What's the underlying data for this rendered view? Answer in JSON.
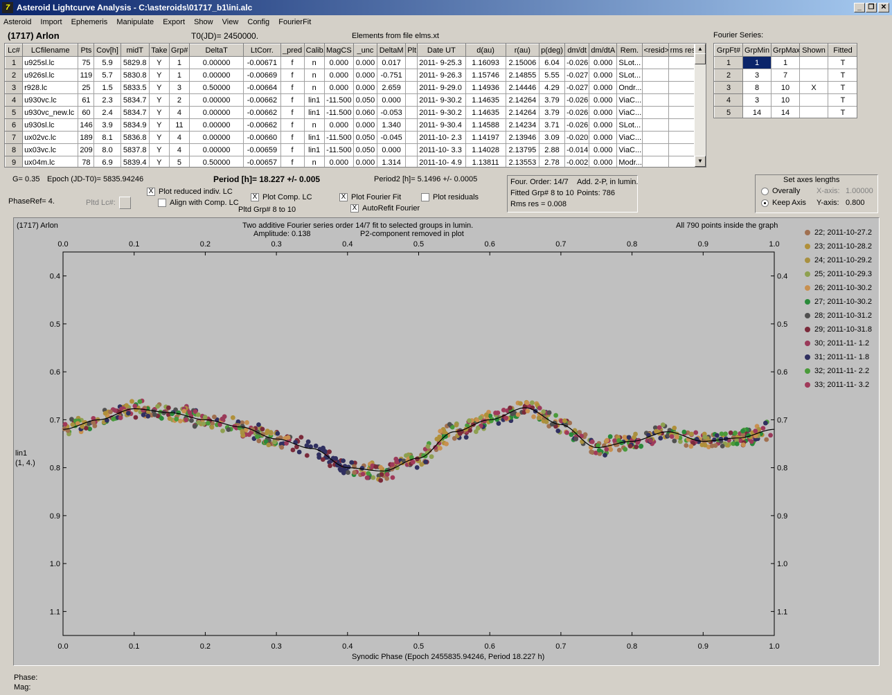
{
  "window": {
    "title": "Asteroid Lightcurve Analysis - C:\\asteroids\\01717_b1\\ini.alc",
    "icon": "app-icon"
  },
  "menu": [
    "Asteroid",
    "Import",
    "Ephemeris",
    "Manipulate",
    "Export",
    "Show",
    "View",
    "Config",
    "FourierFit"
  ],
  "asteroid_name": "(1717) Arlon",
  "t0": "T0(JD)= 2450000.",
  "elements": "Elements from file elms.xt",
  "lc_table": {
    "headers": [
      "Lc#",
      "LCfilename",
      "Pts",
      "Cov[h]",
      "midT",
      "Take",
      "Grp#",
      "DeltaT",
      "LtCorr.",
      "_pred",
      "Calib.",
      "MagCS",
      "_unc",
      "DeltaM",
      "Plt",
      "Date UT",
      "d(au)",
      "r(au)",
      "p(deg)",
      "dm/dt",
      "dm/dtA",
      "Rem.",
      "<resid>",
      "rms res"
    ],
    "rows": [
      [
        "1",
        "u925sl.lc",
        "75",
        "5.9",
        "5829.8",
        "Y",
        "1",
        "0.00000",
        "-0.00671",
        "f",
        "n",
        "0.000",
        "0.000",
        "0.017",
        "",
        "2011- 9-25.3",
        "1.16093",
        "2.15006",
        "6.04",
        "-0.026",
        "0.000",
        "SLot...",
        "",
        ""
      ],
      [
        "2",
        "u926sl.lc",
        "119",
        "5.7",
        "5830.8",
        "Y",
        "1",
        "0.00000",
        "-0.00669",
        "f",
        "n",
        "0.000",
        "0.000",
        "-0.751",
        "",
        "2011- 9-26.3",
        "1.15746",
        "2.14855",
        "5.55",
        "-0.027",
        "0.000",
        "SLot...",
        "",
        ""
      ],
      [
        "3",
        "r928.lc",
        "25",
        "1.5",
        "5833.5",
        "Y",
        "3",
        "0.50000",
        "-0.00664",
        "f",
        "n",
        "0.000",
        "0.000",
        "2.659",
        "",
        "2011- 9-29.0",
        "1.14936",
        "2.14446",
        "4.29",
        "-0.027",
        "0.000",
        "Ondr...",
        "",
        ""
      ],
      [
        "4",
        "u930vc.lc",
        "61",
        "2.3",
        "5834.7",
        "Y",
        "2",
        "0.00000",
        "-0.00662",
        "f",
        "lin1",
        "-11.500",
        "0.050",
        "0.000",
        "",
        "2011- 9-30.2",
        "1.14635",
        "2.14264",
        "3.79",
        "-0.026",
        "0.000",
        "ViaC...",
        "",
        ""
      ],
      [
        "5",
        "u930vc_new.lc",
        "60",
        "2.4",
        "5834.7",
        "Y",
        "4",
        "0.00000",
        "-0.00662",
        "f",
        "lin1",
        "-11.500",
        "0.060",
        "-0.053",
        "",
        "2011- 9-30.2",
        "1.14635",
        "2.14264",
        "3.79",
        "-0.026",
        "0.000",
        "ViaC...",
        "",
        ""
      ],
      [
        "6",
        "u930sl.lc",
        "146",
        "3.9",
        "5834.9",
        "Y",
        "11",
        "0.00000",
        "-0.00662",
        "f",
        "n",
        "0.000",
        "0.000",
        "1.340",
        "",
        "2011- 9-30.4",
        "1.14588",
        "2.14234",
        "3.71",
        "-0.026",
        "0.000",
        "SLot...",
        "",
        ""
      ],
      [
        "7",
        "ux02vc.lc",
        "189",
        "8.1",
        "5836.8",
        "Y",
        "4",
        "0.00000",
        "-0.00660",
        "f",
        "lin1",
        "-11.500",
        "0.050",
        "-0.045",
        "",
        "2011-10- 2.3",
        "1.14197",
        "2.13946",
        "3.09",
        "-0.020",
        "0.000",
        "ViaC...",
        "",
        ""
      ],
      [
        "8",
        "ux03vc.lc",
        "209",
        "8.0",
        "5837.8",
        "Y",
        "4",
        "0.00000",
        "-0.00659",
        "f",
        "lin1",
        "-11.500",
        "0.050",
        "0.000",
        "",
        "2011-10- 3.3",
        "1.14028",
        "2.13795",
        "2.88",
        "-0.014",
        "0.000",
        "ViaC...",
        "",
        ""
      ],
      [
        "9",
        "ux04m.lc",
        "78",
        "6.9",
        "5839.4",
        "Y",
        "5",
        "0.50000",
        "-0.00657",
        "f",
        "n",
        "0.000",
        "0.000",
        "1.314",
        "",
        "2011-10- 4.9",
        "1.13811",
        "2.13553",
        "2.78",
        "-0.002",
        "0.000",
        "Modr...",
        "",
        ""
      ]
    ]
  },
  "fourier_series": {
    "label": "Fourier Series:",
    "headers": [
      "GrpFt#",
      "GrpMin",
      "GrpMax",
      "Shown",
      "Fitted"
    ],
    "rows": [
      [
        "1",
        "1",
        "1",
        "",
        "T"
      ],
      [
        "2",
        "3",
        "7",
        "",
        "T"
      ],
      [
        "3",
        "8",
        "10",
        "X",
        "T"
      ],
      [
        "4",
        "3",
        "10",
        "",
        "T"
      ],
      [
        "5",
        "14",
        "14",
        "",
        "T"
      ]
    ]
  },
  "info": {
    "g": "G= 0.35",
    "epoch": "Epoch (JD-T0)= 5835.94246",
    "period": "Period [h]= 18.227 +/- 0.005",
    "period2": "Period2 [h]= 5.1496 +/- 0.0005",
    "phaseref": "PhaseRef= 4.",
    "pltd_lc": "Pltd Lc#:",
    "pltd_grp": "Pltd Grp#  8  to  10"
  },
  "checkboxes": {
    "plot_reduced": {
      "label": "Plot reduced indiv. LC",
      "checked": "X"
    },
    "align_comp": {
      "label": "Align with Comp. LC",
      "checked": ""
    },
    "plot_comp": {
      "label": "Plot Comp. LC",
      "checked": "X"
    },
    "plot_fourier": {
      "label": "Plot Fourier Fit",
      "checked": "X"
    },
    "autorefit": {
      "label": "AutoRefit Fourier",
      "checked": "X"
    },
    "plot_residuals": {
      "label": "Plot residuals",
      "checked": ""
    }
  },
  "fit_box": {
    "line1a": "Four. Order: 14/7",
    "line1b": "Add. 2-P, in lumin.",
    "line2a": "Fitted Grp# 8 to 10",
    "line2b": "Points: 786",
    "line3": "Rms res      = 0.008"
  },
  "axes_box": {
    "title": "Set axes lengths",
    "overally": "Overally",
    "keep_axis": "Keep Axis",
    "xaxis_label": "X-axis:",
    "xaxis_value": "1.00000",
    "yaxis_label": "Y-axis:",
    "yaxis_value": "0.800"
  },
  "plot": {
    "top_left": "(1717) Arlon",
    "subtitle1": "Two additive Fourier series order 14/7 fit to selected groups in lumin.",
    "amplitude": "Amplitude: 0.138",
    "p2note": "P2-component removed in plot",
    "inside": "All 790 points inside the graph",
    "ylabel1": "lin1",
    "ylabel2": "(1, 4.)",
    "xlabel": "Synodic Phase (Epoch 2455835.94246, Period 18.227 h)",
    "x_ticks": [
      "0.0",
      "0.1",
      "0.2",
      "0.3",
      "0.4",
      "0.5",
      "0.6",
      "0.7",
      "0.8",
      "0.9",
      "1.0"
    ],
    "y_ticks": [
      "0.4",
      "0.5",
      "0.6",
      "0.7",
      "0.8",
      "0.9",
      "1.0",
      "1.1"
    ]
  },
  "chart_data": {
    "type": "scatter",
    "title": "Two additive Fourier series order 14/7 fit to selected groups in lumin.",
    "xlabel": "Synodic Phase (Epoch 2455835.94246, Period 18.227 h)",
    "ylabel": "lin1",
    "xlim": [
      0.0,
      1.0
    ],
    "ylim": [
      1.15,
      0.35
    ],
    "y_inverted": true,
    "grid": false,
    "legend_position": "right",
    "fit_curve": {
      "x": [
        0.0,
        0.05,
        0.1,
        0.15,
        0.2,
        0.25,
        0.3,
        0.35,
        0.4,
        0.45,
        0.5,
        0.55,
        0.6,
        0.65,
        0.7,
        0.75,
        0.8,
        0.85,
        0.9,
        0.95,
        1.0
      ],
      "y": [
        0.72,
        0.7,
        0.677,
        0.685,
        0.7,
        0.715,
        0.74,
        0.76,
        0.8,
        0.807,
        0.78,
        0.725,
        0.7,
        0.675,
        0.71,
        0.758,
        0.745,
        0.725,
        0.745,
        0.738,
        0.72
      ]
    },
    "series": [
      {
        "name": "22; 2011-10-27.2",
        "color": "#a07050"
      },
      {
        "name": "23; 2011-10-28.2",
        "color": "#b0903a"
      },
      {
        "name": "24; 2011-10-29.2",
        "color": "#a89040"
      },
      {
        "name": "25; 2011-10-29.3",
        "color": "#8ea050"
      },
      {
        "name": "26; 2011-10-30.2",
        "color": "#c89050"
      },
      {
        "name": "27; 2011-10-30.2",
        "color": "#2a8a3a"
      },
      {
        "name": "28; 2011-10-31.2",
        "color": "#505050"
      },
      {
        "name": "29; 2011-10-31.8",
        "color": "#7a2a3a"
      },
      {
        "name": "30; 2011-11- 1.2",
        "color": "#9a3a5a"
      },
      {
        "name": "31; 2011-11- 1.8",
        "color": "#303060"
      },
      {
        "name": "32; 2011-11- 2.2",
        "color": "#4a9a3a"
      },
      {
        "name": "33; 2011-11- 3.2",
        "color": "#a03a5a"
      }
    ]
  },
  "status": {
    "phase": "Phase:",
    "mag": "Mag:"
  }
}
